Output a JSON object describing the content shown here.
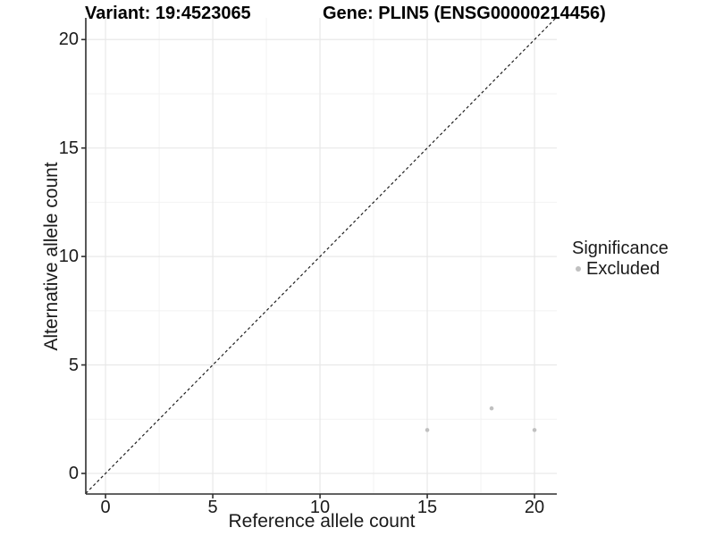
{
  "chart_data": {
    "type": "scatter",
    "titles": {
      "variant": "Variant: 19:4523065",
      "gene": "Gene: PLIN5 (ENSG00000214456)"
    },
    "xlabel": "Reference allele count",
    "ylabel": "Alternative allele count",
    "xlim": [
      -0.92,
      21.04
    ],
    "ylim": [
      -0.95,
      21.0
    ],
    "x_ticks": [
      0,
      5,
      10,
      15,
      20
    ],
    "y_ticks": [
      0,
      5,
      10,
      15,
      20
    ],
    "x_minor_ticks": [
      2.5,
      7.5,
      12.5,
      17.5
    ],
    "y_minor_ticks": [
      2.5,
      7.5,
      12.5,
      17.5
    ],
    "grid": true,
    "identity_line": {
      "style": "dashed",
      "color": "#1f1f1f",
      "from": -0.92,
      "to": 21.0
    },
    "series": [
      {
        "name": "Excluded",
        "color": "#c0c0c0",
        "points": [
          [
            15,
            2
          ],
          [
            18,
            3
          ],
          [
            20,
            2
          ]
        ]
      }
    ],
    "legend": {
      "position": "right",
      "title": "Significance",
      "items": [
        {
          "label": "Excluded",
          "color": "#c0c0c0"
        }
      ]
    },
    "colors": {
      "grid_major": "#e8e8e8",
      "grid_minor": "#f2f2f2",
      "axis_line": "#2f2f2f",
      "point": "#c0c0c0"
    }
  }
}
